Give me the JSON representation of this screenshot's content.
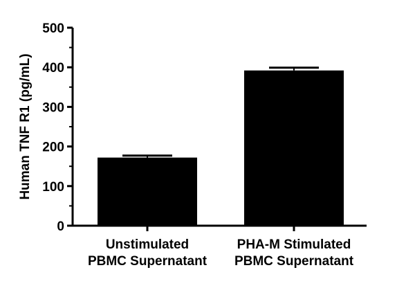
{
  "chart_data": {
    "type": "bar",
    "categories": [
      [
        "Unstimulated",
        "PBMC Supernatant"
      ],
      [
        "PHA-M Stimulated",
        "PBMC Supernatant"
      ]
    ],
    "values": [
      172,
      392
    ],
    "errors": [
      5,
      7
    ],
    "ylabel": "Human TNF R1 (pg/mL)",
    "ylim": [
      0,
      500
    ],
    "yticks": [
      0,
      100,
      200,
      300,
      400,
      500
    ],
    "bar_color": "#000000",
    "grid": false
  }
}
